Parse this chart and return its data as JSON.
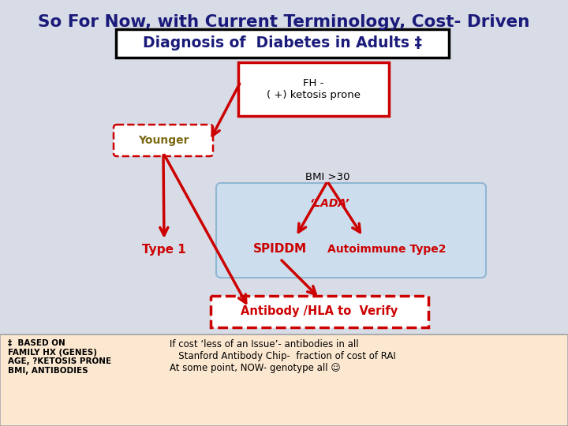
{
  "title_line1": "So For Now, with Current Terminology, Cost- Driven",
  "title_line2": "Diagnosis of  Diabetes in Adults ‡",
  "title_color": "#1a237e",
  "bg_color": "#d8dce6",
  "footer_bg": "#fce8d0",
  "box_fh_text": "FH -\n( +) ketosis prone",
  "box_younger_text": "Younger",
  "box_bmi_text": "BMI >30",
  "box_lada_text": "‘LADA’",
  "box_type1_text": "Type 1",
  "box_spiddm_text": "SPIDDM",
  "box_autoimmune_text": "Autoimmune Type2",
  "box_antibody_text": "Antibody /HLA to  Verify",
  "footer_left": "‡  BASED ON\nFAMILY HX (GENES)\nAGE, ?KETOSIS PRONE\nBMI, ANTIBODIES",
  "footer_right": "If cost ‘less of an Issue’- antibodies in all\n   Stanford Antibody Chip-  fraction of cost of RAI\nAt some point, NOW- genotype all ☺",
  "red": "#cc0000",
  "navy": "#1a1a7a",
  "olive": "#7b6914",
  "light_blue_box": "#c8dff0",
  "blue_border": "#7aaacc"
}
